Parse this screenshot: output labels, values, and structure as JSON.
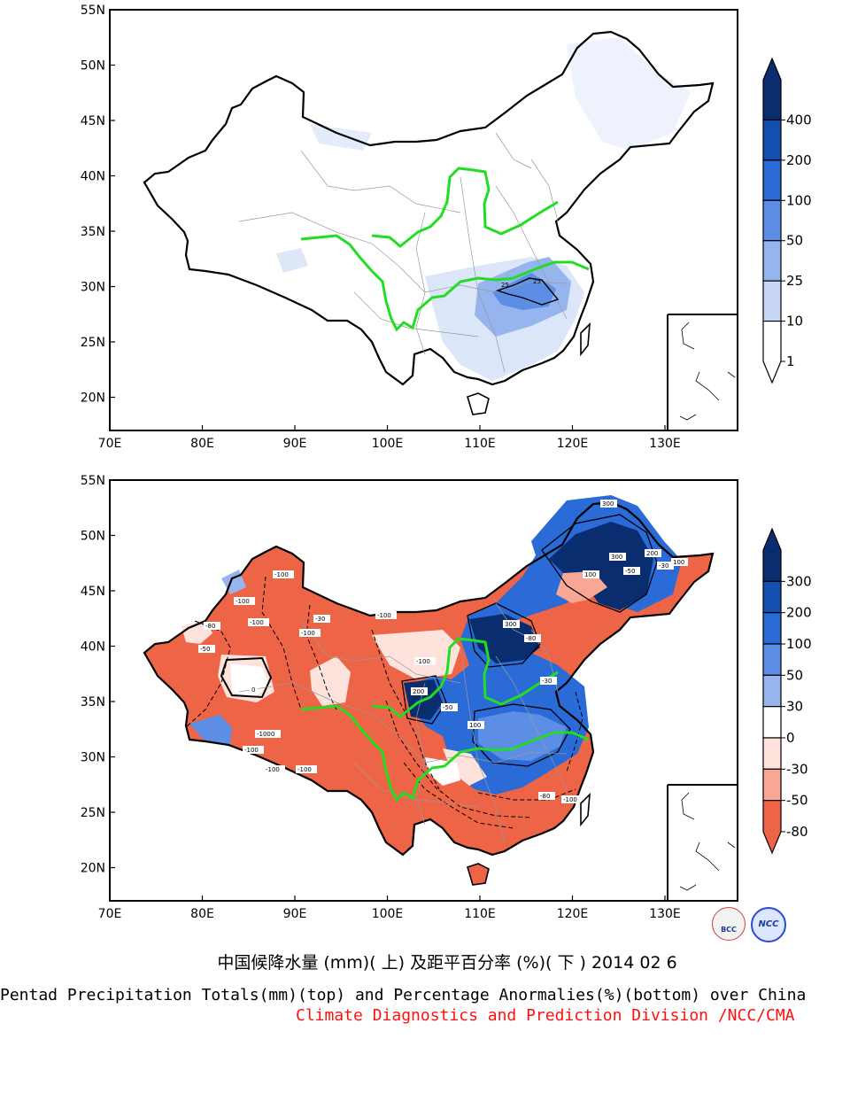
{
  "top_panel": {
    "lat_ticks": [
      "55N",
      "50N",
      "45N",
      "40N",
      "35N",
      "30N",
      "25N",
      "20N"
    ],
    "lon_ticks": [
      "70E",
      "80E",
      "90E",
      "100E",
      "110E",
      "120E",
      "130E"
    ],
    "colorbar": {
      "labels": [
        "400",
        "200",
        "100",
        "50",
        "25",
        "10",
        "1"
      ],
      "colors": [
        "#0a2d70",
        "#134fb0",
        "#2a6bd8",
        "#5c8ee6",
        "#96b4ee",
        "#c8d7f6",
        "#ffffff"
      ]
    },
    "contour_labels": [
      "25",
      "25"
    ]
  },
  "bottom_panel": {
    "lat_ticks": [
      "55N",
      "50N",
      "45N",
      "40N",
      "35N",
      "30N",
      "25N",
      "20N"
    ],
    "lon_ticks": [
      "70E",
      "80E",
      "90E",
      "100E",
      "110E",
      "120E",
      "130E"
    ],
    "colorbar": {
      "labels": [
        "300",
        "200",
        "100",
        "50",
        "30",
        "0",
        "-30",
        "-50",
        "-80"
      ],
      "colors": [
        "#0a2d70",
        "#134fb0",
        "#2a6bd8",
        "#5c8ee6",
        "#96b4ee",
        "#ffffff",
        "#fde3dc",
        "#f7a794",
        "#ee6446"
      ]
    },
    "contour_labels": [
      "-100",
      "-100",
      "-80",
      "-50",
      "-100",
      "-100",
      "-30",
      "-100",
      "-100",
      "-1000",
      "-100",
      "-100",
      "-100",
      "300",
      "300",
      "200",
      "100",
      "100",
      "-50",
      "-30",
      "-80",
      "-30",
      "-100",
      "300",
      "200",
      "-80",
      "-50",
      "100",
      "0"
    ]
  },
  "captions": {
    "chinese": "中国候降水量 (mm)( 上) 及距平百分率 (%)( 下 ) 2014 02 6",
    "english": "Pentad Precipitation Totals(mm)(top) and Percentage Anormalies(%)(bottom) over China",
    "division": "Climate Diagnostics and Prediction Division /NCC/CMA"
  },
  "logos": {
    "left": "BCC",
    "right": "NCC"
  },
  "colors": {
    "river": "#22dd22",
    "division_text": "#ff1010",
    "border": "#000000"
  }
}
